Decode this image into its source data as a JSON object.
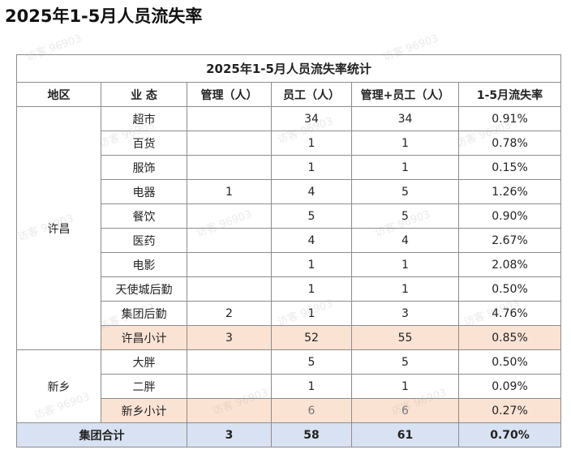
{
  "page_title": "2025年1-5月人员流失率",
  "table": {
    "title": "2025年1-5月人员流失率统计",
    "headers": [
      "地区",
      "业 态",
      "管理（人）",
      "员工（人）",
      "管理+员工（人）",
      "1-5月流失率"
    ],
    "groups": [
      {
        "region": "许昌",
        "rows": [
          {
            "format": "超市",
            "mgmt": "",
            "staff": "34",
            "total": "34",
            "rate": "0.91%"
          },
          {
            "format": "百货",
            "mgmt": "",
            "staff": "1",
            "total": "1",
            "rate": "0.78%"
          },
          {
            "format": "服饰",
            "mgmt": "",
            "staff": "1",
            "total": "1",
            "rate": "0.15%"
          },
          {
            "format": "电器",
            "mgmt": "1",
            "staff": "4",
            "total": "5",
            "rate": "1.26%"
          },
          {
            "format": "餐饮",
            "mgmt": "",
            "staff": "5",
            "total": "5",
            "rate": "0.90%"
          },
          {
            "format": "医药",
            "mgmt": "",
            "staff": "4",
            "total": "4",
            "rate": "2.67%"
          },
          {
            "format": "电影",
            "mgmt": "",
            "staff": "1",
            "total": "1",
            "rate": "2.08%"
          },
          {
            "format": "天使城后勤",
            "mgmt": "",
            "staff": "1",
            "total": "1",
            "rate": "0.50%"
          },
          {
            "format": "集团后勤",
            "mgmt": "2",
            "staff": "1",
            "total": "3",
            "rate": "4.76%"
          }
        ],
        "subtotal": {
          "label": "许昌小计",
          "mgmt": "3",
          "staff": "52",
          "total": "55",
          "rate": "0.85%"
        }
      },
      {
        "region": "新乡",
        "rows": [
          {
            "format": "大胖",
            "mgmt": "",
            "staff": "5",
            "total": "5",
            "rate": "0.50%"
          },
          {
            "format": "二胖",
            "mgmt": "",
            "staff": "1",
            "total": "1",
            "rate": "0.09%"
          }
        ],
        "subtotal": {
          "label": "新乡小计",
          "mgmt": "",
          "staff": "6",
          "total": "6",
          "rate": "0.27%"
        }
      }
    ],
    "grand_total": {
      "label": "集团合计",
      "mgmt": "3",
      "staff": "58",
      "total": "61",
      "rate": "0.70%"
    }
  },
  "watermark_text": "访客 96903",
  "colors": {
    "subtotal_bg": "#fbe3d4",
    "grand_total_bg": "#d9e2f2",
    "border": "#8c8c8c"
  }
}
